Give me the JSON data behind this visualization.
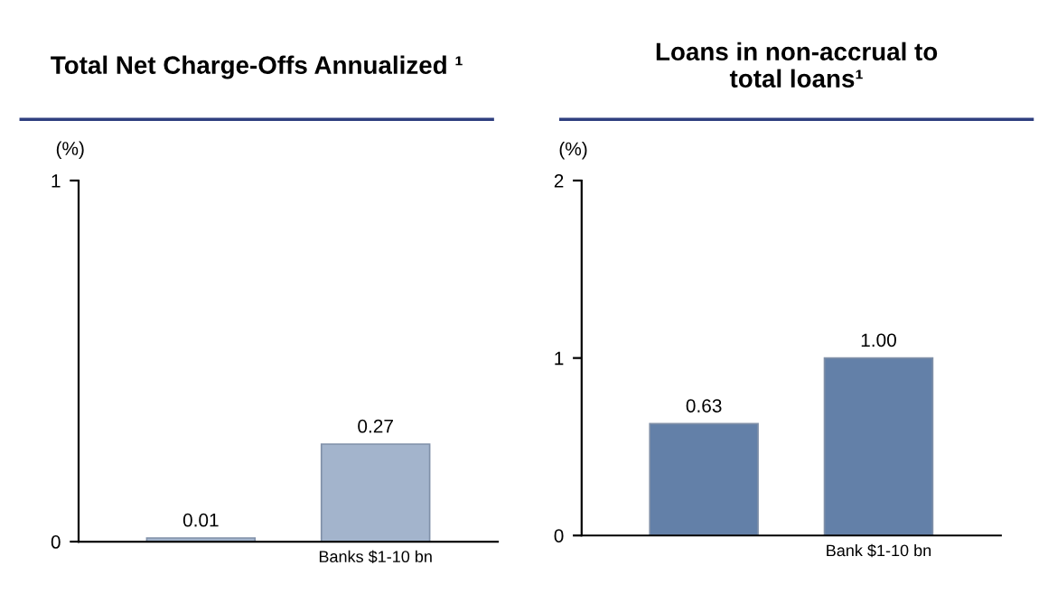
{
  "chart_data": [
    {
      "type": "bar",
      "title": "Total Net Charge-Offs Annualized ¹",
      "ylabel": "(%)",
      "categories": [
        null,
        "Banks $1-10 bn"
      ],
      "values": [
        0.01,
        0.27
      ],
      "colors": [
        "#a3b4cc",
        "#a3b4cc"
      ],
      "ylim": [
        0,
        1
      ],
      "yticks": [
        0,
        1
      ],
      "data_labels": true,
      "grid": false,
      "legend": false
    },
    {
      "type": "bar",
      "title": "Loans in non-accrual to\ntotal loans¹",
      "ylabel": "(%)",
      "categories": [
        null,
        "Bank $1-10 bn"
      ],
      "values": [
        0.63,
        1.0
      ],
      "value_labels": [
        "0.63",
        "1.00"
      ],
      "colors": [
        "#6380a8",
        "#6380a8"
      ],
      "ylim": [
        0,
        2
      ],
      "yticks": [
        0,
        1,
        2
      ],
      "grid": false,
      "legend": false
    }
  ]
}
